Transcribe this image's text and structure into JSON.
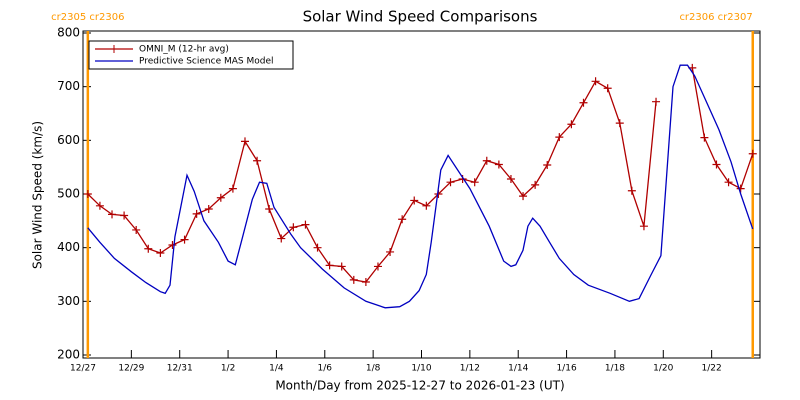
{
  "chart_data": {
    "type": "line",
    "title": "Solar Wind Speed Comparisons",
    "x_label": "Month/Day from 2025-12-27 to 2026-01-23 (UT)",
    "y_label": "Solar Wind Speed (km/s)",
    "xlim": [
      0,
      28
    ],
    "xticks": [
      {
        "value": 0,
        "label": "12/27"
      },
      {
        "value": 2,
        "label": "12/29"
      },
      {
        "value": 4,
        "label": "12/31"
      },
      {
        "value": 6,
        "label": "1/2"
      },
      {
        "value": 8,
        "label": "1/4"
      },
      {
        "value": 10,
        "label": "1/6"
      },
      {
        "value": 12,
        "label": "1/8"
      },
      {
        "value": 14,
        "label": "1/10"
      },
      {
        "value": 16,
        "label": "1/12"
      },
      {
        "value": 18,
        "label": "1/14"
      },
      {
        "value": 20,
        "label": "1/16"
      },
      {
        "value": 22,
        "label": "1/18"
      },
      {
        "value": 24,
        "label": "1/20"
      },
      {
        "value": 26,
        "label": "1/22"
      }
    ],
    "ylim": [
      200,
      800
    ],
    "yticks": [
      200,
      300,
      400,
      500,
      600,
      700,
      800
    ],
    "legend": "upper left",
    "annotations": [
      {
        "x": 0.2,
        "label": "cr2305 cr2306",
        "color": "#ff9900"
      },
      {
        "x": 27.7,
        "label": "cr2306 cr2307",
        "color": "#ff9900"
      }
    ],
    "series": [
      {
        "name": "OMNI_M (12-hr avg)",
        "color": "#b00000",
        "marker": "+",
        "x": [
          0.2,
          0.7,
          1.2,
          1.7,
          2.2,
          2.7,
          3.2,
          3.7,
          4.2,
          4.7,
          5.2,
          5.7,
          6.2,
          6.7,
          7.2,
          7.7,
          8.2,
          8.7,
          9.2,
          9.7,
          10.2,
          10.7,
          11.2,
          11.7,
          12.2,
          12.7,
          13.2,
          13.7,
          14.2,
          14.7,
          15.2,
          15.7,
          16.2,
          16.7,
          17.2,
          17.7,
          18.2,
          18.7,
          19.2,
          19.7,
          20.2,
          20.7,
          21.2,
          21.7,
          22.2,
          22.7,
          23.2,
          23.7,
          24.2,
          24.7,
          25.2,
          25.7,
          26.2,
          26.7,
          27.2,
          27.7
        ],
        "values": [
          500,
          478,
          462,
          460,
          433,
          398,
          390,
          405,
          415,
          463,
          472,
          493,
          510,
          598,
          562,
          472,
          417,
          438,
          443,
          400,
          367,
          365,
          340,
          336,
          365,
          392,
          453,
          488,
          478,
          500,
          522,
          528,
          522,
          562,
          555,
          528,
          496,
          517,
          554,
          606,
          630,
          670,
          710,
          697,
          632,
          506,
          440,
          672,
          null,
          null,
          735,
          605,
          555,
          522,
          510,
          575
        ]
      },
      {
        "name": "Predictive Science MAS Model",
        "color": "#0000c0",
        "x": [
          0.2,
          0.7,
          1.3,
          2.0,
          2.6,
          3.2,
          3.4,
          3.6,
          3.8,
          4.3,
          4.6,
          5.0,
          5.6,
          6.0,
          6.3,
          6.6,
          7.0,
          7.3,
          7.6,
          7.9,
          8.6,
          9.0,
          9.9,
          10.8,
          11.7,
          12.5,
          13.1,
          13.5,
          13.9,
          14.2,
          14.4,
          14.8,
          15.1,
          16.0,
          16.8,
          17.4,
          17.7,
          17.9,
          18.2,
          18.4,
          18.6,
          18.9,
          19.3,
          19.7,
          20.3,
          20.9,
          21.8,
          22.6,
          23.0,
          23.5,
          23.9,
          24.4,
          24.7,
          25.0,
          25.3,
          25.7,
          26.3,
          26.8,
          27.2,
          27.7
        ],
        "values": [
          437,
          410,
          380,
          355,
          335,
          318,
          315,
          330,
          420,
          535,
          505,
          450,
          410,
          375,
          368,
          420,
          490,
          522,
          520,
          475,
          425,
          400,
          360,
          325,
          300,
          288,
          290,
          300,
          320,
          350,
          410,
          545,
          572,
          510,
          440,
          375,
          365,
          368,
          395,
          440,
          455,
          440,
          410,
          380,
          350,
          330,
          315,
          300,
          305,
          350,
          385,
          700,
          740,
          740,
          720,
          680,
          620,
          560,
          500,
          435
        ]
      }
    ]
  }
}
